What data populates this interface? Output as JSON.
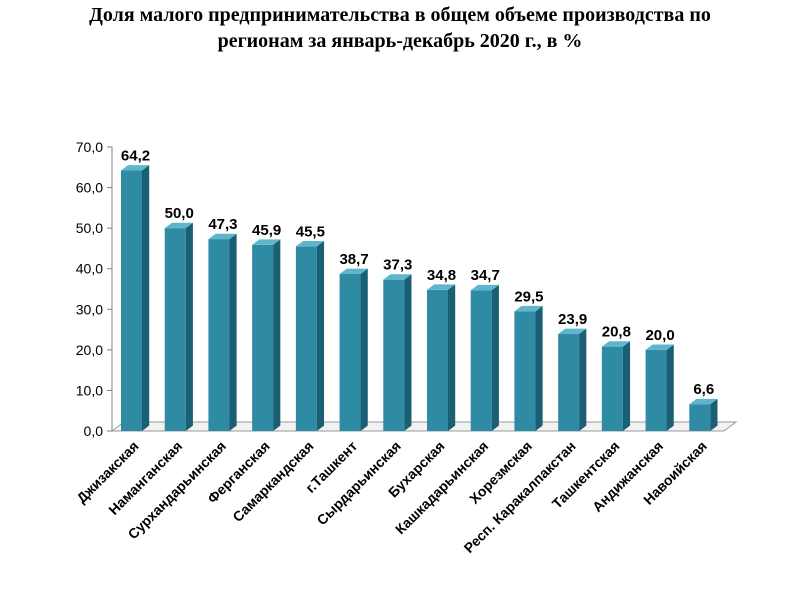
{
  "chart_data": {
    "type": "bar",
    "title_line1": "Доля малого предпринимательства в общем объеме производства по",
    "title_line2": "регионам за январь-декабрь 2020 г., в %",
    "categories": [
      "Джизакская",
      "Наманганская",
      "Сурхандарьинская",
      "Ферганская",
      "Самаркандская",
      "г.Ташкент",
      "Сырдарьинская",
      "Бухарская",
      "Кашкадарьинская",
      "Хорезмская",
      "Респ. Каракалпакстан",
      "Ташкентская",
      "Андижанская",
      "Навоийская"
    ],
    "values": [
      64.2,
      50.0,
      47.3,
      45.9,
      45.5,
      38.7,
      37.3,
      34.8,
      34.7,
      29.5,
      23.9,
      20.8,
      20.0,
      6.6
    ],
    "value_labels": [
      "64,2",
      "50,0",
      "47,3",
      "45,9",
      "45,5",
      "38,7",
      "37,3",
      "34,8",
      "34,7",
      "29,5",
      "23,9",
      "20,8",
      "20,0",
      "6,6"
    ],
    "y_ticks": [
      "0,0",
      "10,0",
      "20,0",
      "30,0",
      "40,0",
      "50,0",
      "60,0",
      "70,0"
    ],
    "ylim": [
      0,
      70
    ],
    "xlabel": "",
    "ylabel": "",
    "grid": false,
    "legend": "none",
    "colors": {
      "bar_front": "#2e8ba3",
      "bar_side": "#1a5f73",
      "bar_top": "#5fb6cc"
    }
  }
}
